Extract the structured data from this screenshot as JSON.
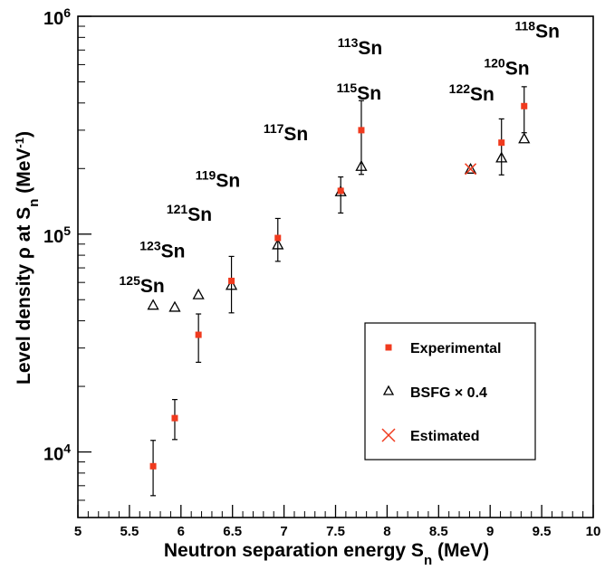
{
  "chart_data": {
    "type": "scatter",
    "xlabel": "Neutron separation energy S",
    "xlabel_sub": "n",
    "xlabel_tail": " (MeV)",
    "ylabel": "Level density ρ at S",
    "ylabel_sub": "n",
    "ylabel_mid": " (MeV",
    "ylabel_sup": "-1",
    "ylabel_tail": ")",
    "xlim": [
      5,
      10
    ],
    "ylim": [
      5000,
      1000000
    ],
    "yscale": "log",
    "grid": false,
    "legend_position": "bottom-right",
    "x_ticks": [
      {
        "v": 5,
        "t": "5"
      },
      {
        "v": 5.5,
        "t": "5.5"
      },
      {
        "v": 6,
        "t": "6"
      },
      {
        "v": 6.5,
        "t": "6.5"
      },
      {
        "v": 7,
        "t": "7"
      },
      {
        "v": 7.5,
        "t": "7.5"
      },
      {
        "v": 8,
        "t": "8"
      },
      {
        "v": 8.5,
        "t": "8.5"
      },
      {
        "v": 9,
        "t": "9"
      },
      {
        "v": 9.5,
        "t": "9.5"
      },
      {
        "v": 10,
        "t": "10"
      }
    ],
    "y_ticks": [
      {
        "v": 10000,
        "base": "10",
        "exp": "4"
      },
      {
        "v": 100000,
        "base": "10",
        "exp": "5"
      },
      {
        "v": 1000000,
        "base": "10",
        "exp": "6"
      }
    ],
    "series": [
      {
        "name": "Experimental",
        "marker": "square",
        "color": "#f03a1e",
        "points": [
          {
            "x": 5.73,
            "y": 8600,
            "lo": 6300,
            "hi": 11300
          },
          {
            "x": 5.94,
            "y": 14300,
            "lo": 11400,
            "hi": 17400
          },
          {
            "x": 6.17,
            "y": 34500,
            "lo": 25800,
            "hi": 43000
          },
          {
            "x": 6.49,
            "y": 61000,
            "lo": 43500,
            "hi": 79000
          },
          {
            "x": 6.94,
            "y": 96000,
            "lo": 75000,
            "hi": 118000
          },
          {
            "x": 7.55,
            "y": 158000,
            "lo": 125000,
            "hi": 183000
          },
          {
            "x": 7.75,
            "y": 300000,
            "lo": 188000,
            "hi": 410000
          },
          {
            "x": 9.11,
            "y": 263000,
            "lo": 187000,
            "hi": 338000
          },
          {
            "x": 9.33,
            "y": 387000,
            "lo": 292000,
            "hi": 475000
          }
        ]
      },
      {
        "name": "BSFG × 0.4",
        "marker": "triangle",
        "color": "#000000",
        "points": [
          {
            "x": 5.73,
            "y": 47000
          },
          {
            "x": 5.94,
            "y": 46000
          },
          {
            "x": 6.17,
            "y": 52500
          },
          {
            "x": 6.49,
            "y": 58000
          },
          {
            "x": 6.94,
            "y": 89000
          },
          {
            "x": 7.55,
            "y": 156000
          },
          {
            "x": 7.75,
            "y": 204000
          },
          {
            "x": 8.81,
            "y": 198000
          },
          {
            "x": 9.11,
            "y": 223000
          },
          {
            "x": 9.33,
            "y": 273000
          }
        ]
      },
      {
        "name": "Estimated",
        "marker": "cross",
        "color": "#f03a1e",
        "points": [
          {
            "x": 8.81,
            "y": 199000
          }
        ]
      }
    ],
    "annotations": [
      {
        "mass": "125",
        "el": "Sn",
        "x": 5.4,
        "y": 54000
      },
      {
        "mass": "123",
        "el": "Sn",
        "x": 5.6,
        "y": 78000
      },
      {
        "mass": "121",
        "el": "Sn",
        "x": 5.86,
        "y": 115000
      },
      {
        "mass": "119",
        "el": "Sn",
        "x": 6.14,
        "y": 165000
      },
      {
        "mass": "117",
        "el": "Sn",
        "x": 6.8,
        "y": 270000
      },
      {
        "mass": "115",
        "el": "Sn",
        "x": 7.51,
        "y": 415000
      },
      {
        "mass": "113",
        "el": "Sn",
        "x": 7.52,
        "y": 670000
      },
      {
        "mass": "122",
        "el": "Sn",
        "x": 8.6,
        "y": 410000
      },
      {
        "mass": "120",
        "el": "Sn",
        "x": 8.94,
        "y": 540000
      },
      {
        "mass": "118",
        "el": "Sn",
        "x": 9.24,
        "y": 800000
      }
    ]
  }
}
